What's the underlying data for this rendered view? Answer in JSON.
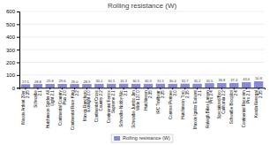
{
  "chart_data": {
    "type": "bar",
    "title": "Rolling resistance (W)",
    "categories": [
      "Maxxis Ardent 29er\n2.25",
      "Schwalbe\n2.1",
      "Hutchinson Spider All\nLight 2.1",
      "Continental Country\nPlus 2.0",
      "Continental Race King\n2.2",
      "Maxxis Ranchero\nExislight 2.0",
      "Continental Cross\nCountry 2.2",
      "Continental Ferrox\nSupreme 2.1",
      "Schwalbe Nobby Nic\n2.1",
      "Schwalbe Jumbo Jim\nWide 127.0",
      "Hutchinson\n2.35",
      "IRC Trailbear\n2.25",
      "Contree Perinee\n2.0",
      "Hutchinson Toro\n2.35",
      "Maxxis Ignitor Exisent\n2.1",
      "Raleigh Bikes Larsen\nPro 2.4",
      "Specialized/Boo\nCalifornia 2.2",
      "Schwalbe Bloopilot\n2.4",
      "Continental Race rim\nPro 2.1",
      "Kenda Nevegal\n2.35"
    ],
    "series": [
      {
        "name": "Rolling resistance (W)",
        "color": "#8888dd",
        "values": [
          27.5,
          28.8,
          29.8,
          29.6,
          29.0,
          28.9,
          30.1,
          30.5,
          31.3,
          30.5,
          30.3,
          31.5,
          30.4,
          31.7,
          31.2,
          35.5,
          36.8,
          37.4,
          43.6,
          50.8
        ],
        "value_labels": [
          "27.5",
          "28.8",
          "29.8",
          "29.6",
          "29.0",
          "28.9",
          "30.1",
          "30.5",
          "31.3",
          "30.5",
          "30.3",
          "31.5",
          "30.4",
          "31.7",
          "31.2",
          "35.5",
          "36.8",
          "37.4",
          "43.6",
          "50.8"
        ]
      }
    ],
    "ylim": [
      0,
      600
    ],
    "yticks": [
      0,
      100,
      200,
      300,
      400,
      500,
      600
    ],
    "grid": true,
    "data_labels": true,
    "legend": "bottom"
  }
}
